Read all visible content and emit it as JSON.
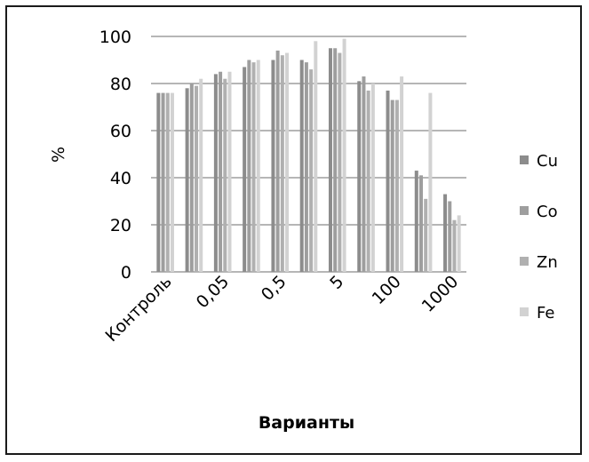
{
  "chart_data": {
    "type": "bar",
    "title": "",
    "xlabel": "Варианты",
    "ylabel": "%",
    "ylim": [
      0,
      100
    ],
    "yticks": [
      0,
      20,
      40,
      60,
      80,
      100
    ],
    "grid": true,
    "legend_position": "right",
    "x_tick_labels": [
      "Контроль",
      "0,05",
      "0,5",
      "5",
      "100",
      "1000"
    ],
    "categories": [
      "Контроль",
      "",
      "0,05",
      "",
      "0,5",
      "",
      "5",
      "",
      "100",
      "",
      "1000"
    ],
    "series": [
      {
        "name": "Cu",
        "color": "#8c8c8c",
        "values": [
          76,
          78,
          84,
          87,
          90,
          90,
          95,
          81,
          77,
          43,
          33
        ]
      },
      {
        "name": "Co",
        "color": "#9e9e9e",
        "values": [
          76,
          80,
          85,
          90,
          94,
          89,
          95,
          83,
          73,
          41,
          30
        ]
      },
      {
        "name": "Zn",
        "color": "#b0b0b0",
        "values": [
          76,
          79,
          82,
          89,
          92,
          86,
          93,
          77,
          73,
          31,
          22
        ]
      },
      {
        "name": "Fe",
        "color": "#d2d2d2",
        "values": [
          76,
          82,
          85,
          90,
          93,
          98,
          99,
          80,
          83,
          76,
          24
        ]
      }
    ]
  }
}
